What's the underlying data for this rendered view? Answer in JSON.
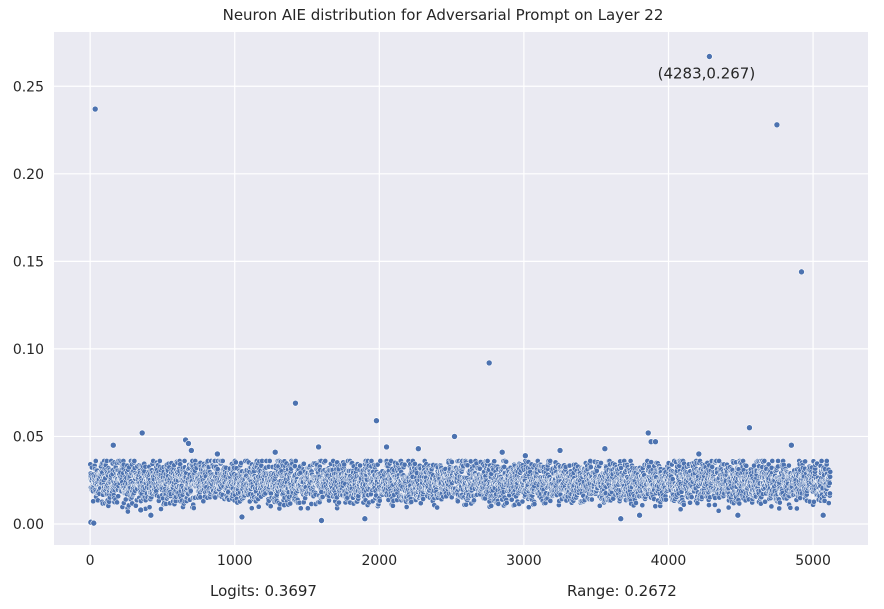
{
  "chart_data": {
    "type": "scatter",
    "title": "Neuron AIE distribution for Adversarial Prompt on Layer 22",
    "xlabel": "",
    "ylabel": "",
    "xlim": [
      -250,
      5380
    ],
    "ylim": [
      -0.012,
      0.281
    ],
    "xticks": [
      0,
      1000,
      2000,
      3000,
      4000,
      5000
    ],
    "xtick_labels": [
      "0",
      "1000",
      "2000",
      "3000",
      "4000",
      "5000"
    ],
    "yticks": [
      0.0,
      0.05,
      0.1,
      0.15,
      0.2,
      0.25
    ],
    "ytick_labels": [
      "0.00",
      "0.05",
      "0.10",
      "0.15",
      "0.20",
      "0.25"
    ],
    "grid": true,
    "marker_color": "#4c72b0",
    "background_color": "#eaeaf2",
    "annotation": {
      "text": "(4283,0.267)",
      "x": 4283,
      "y": 0.267
    },
    "neuron_count": 5120,
    "bulk_range": [
      0.005,
      0.036
    ],
    "bulk_center": 0.024,
    "series": [
      {
        "x": [
          5,
          25,
          35,
          160,
          360,
          420,
          660,
          680,
          700,
          1420,
          1580,
          1600,
          1900,
          1980,
          2050,
          2520,
          2760,
          2850,
          3560,
          3670,
          3800,
          3860,
          3880,
          3910,
          4283,
          4560,
          4750,
          4850,
          4920,
          5070,
          350,
          880,
          1050,
          1280,
          2270,
          3010,
          3250,
          4210,
          4480
        ],
        "y": [
          0.001,
          0.0005,
          0.237,
          0.045,
          0.052,
          0.005,
          0.048,
          0.046,
          0.042,
          0.069,
          0.044,
          0.002,
          0.003,
          0.059,
          0.044,
          0.05,
          0.092,
          0.041,
          0.043,
          0.003,
          0.005,
          0.052,
          0.047,
          0.047,
          0.267,
          0.055,
          0.228,
          0.045,
          0.144,
          0.005,
          0.008,
          0.04,
          0.004,
          0.041,
          0.043,
          0.039,
          0.042,
          0.04,
          0.005
        ]
      }
    ]
  },
  "footer": {
    "logits": "Logits: 0.3697",
    "range": "Range: 0.2672"
  }
}
